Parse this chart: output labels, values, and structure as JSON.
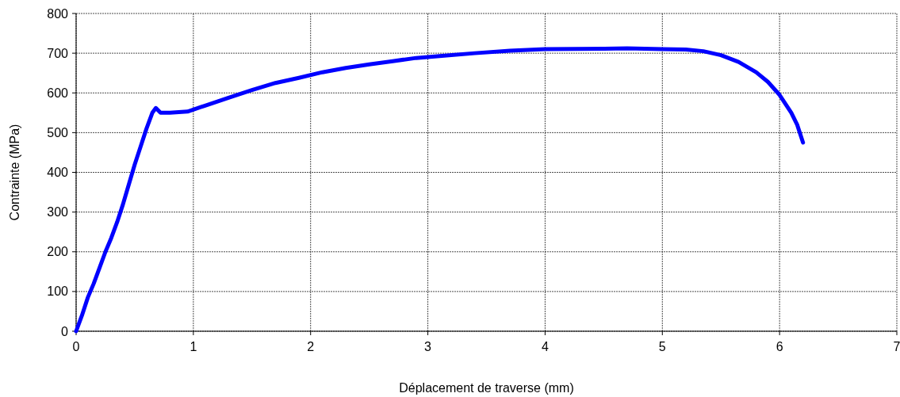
{
  "chart_data": {
    "type": "line",
    "xlabel": "Déplacement de traverse (mm)",
    "ylabel": "Contrainte (MPa)",
    "xlim": [
      0,
      7
    ],
    "xticks": [
      0,
      1,
      2,
      3,
      4,
      5,
      6,
      7
    ],
    "ylim": [
      0,
      800
    ],
    "yticks": [
      0,
      100,
      200,
      300,
      400,
      500,
      600,
      700,
      800
    ],
    "grid": true,
    "series": [
      {
        "color": "#0000ff",
        "x": [
          0,
          0.05,
          0.1,
          0.15,
          0.2,
          0.25,
          0.3,
          0.35,
          0.4,
          0.45,
          0.5,
          0.55,
          0.6,
          0.65,
          0.68,
          0.72,
          0.8,
          0.95,
          1.1,
          1.3,
          1.5,
          1.7,
          1.9,
          2.1,
          2.3,
          2.5,
          2.7,
          2.9,
          3.1,
          3.4,
          3.7,
          4.0,
          4.5,
          4.7,
          5.0,
          5.2,
          5.35,
          5.5,
          5.65,
          5.8,
          5.9,
          6.0,
          6.1,
          6.15,
          6.2
        ],
        "values": [
          0,
          40,
          85,
          120,
          160,
          200,
          235,
          275,
          320,
          370,
          420,
          465,
          510,
          550,
          562,
          550,
          550,
          553,
          568,
          588,
          607,
          625,
          638,
          652,
          663,
          672,
          680,
          688,
          693,
          700,
          706,
          710,
          711,
          712,
          710,
          709,
          705,
          695,
          678,
          652,
          628,
          595,
          550,
          520,
          475
        ]
      }
    ]
  }
}
